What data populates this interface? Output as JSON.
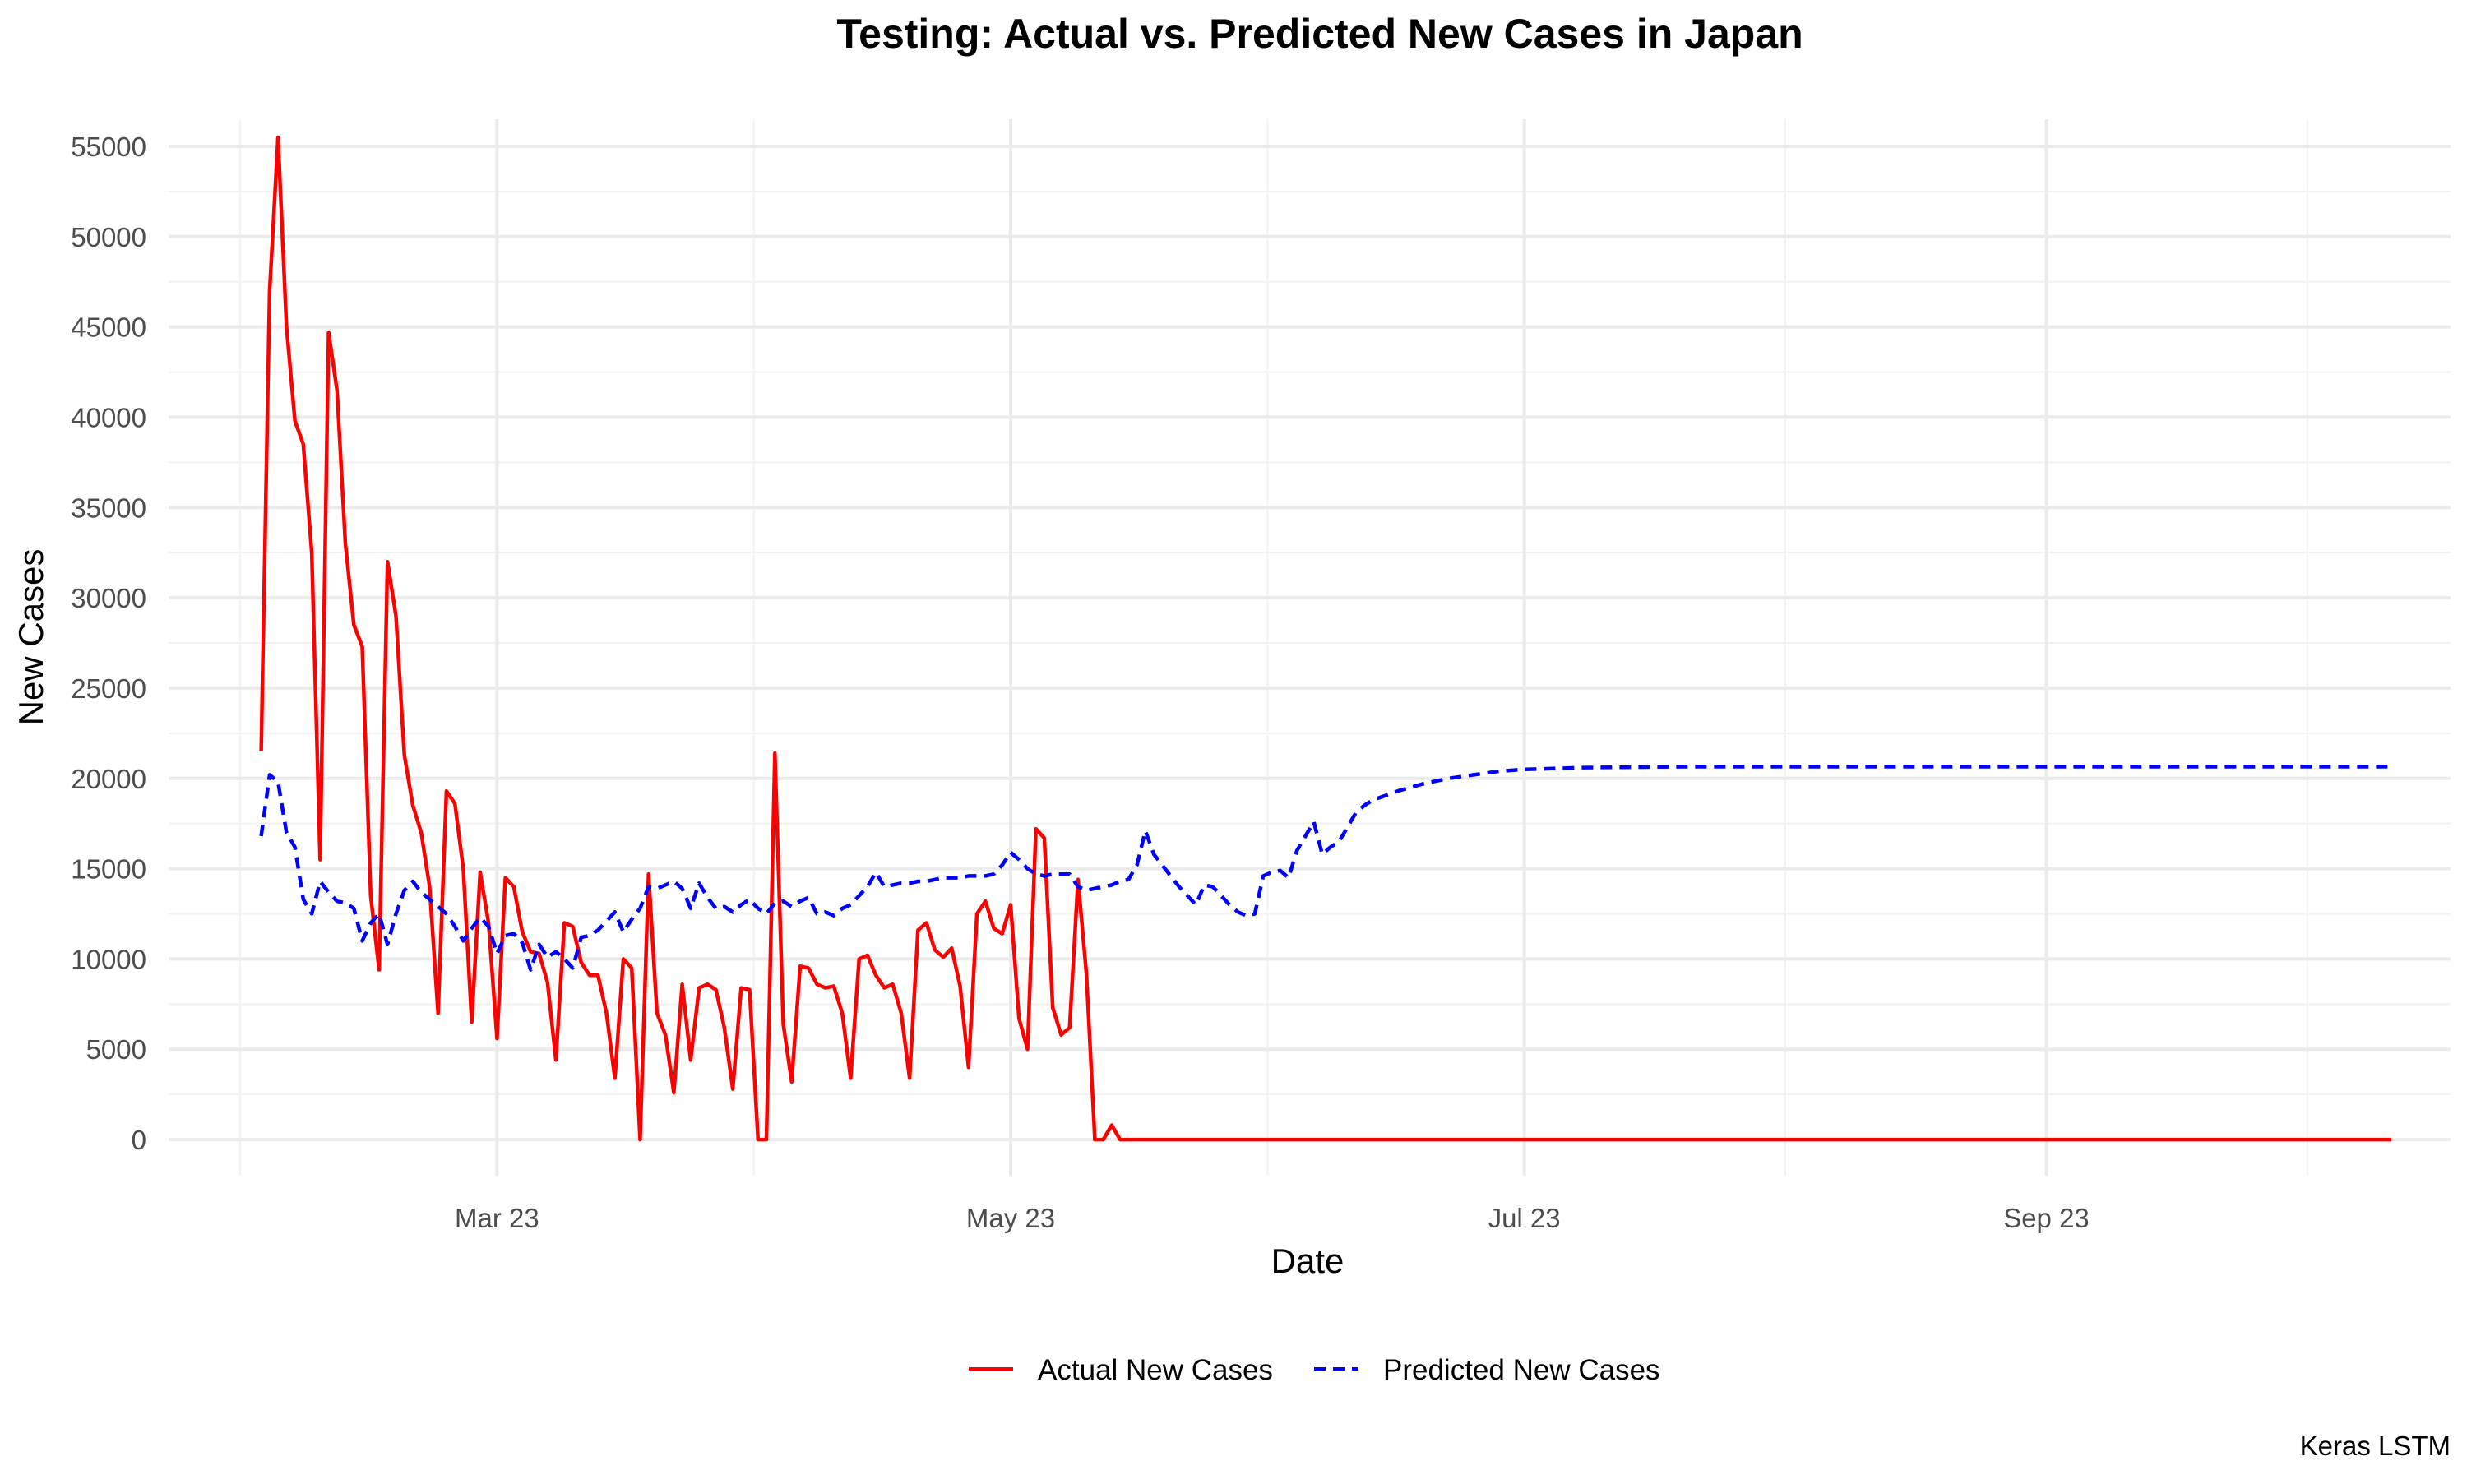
{
  "chart_data": {
    "type": "line",
    "title": "Testing: Actual vs. Predicted New Cases in Japan",
    "xlabel": "Date",
    "ylabel": "New Cases",
    "caption": "Keras LSTM",
    "xlim": [
      "2023-01-21",
      "2023-10-19"
    ],
    "ylim": [
      -2000,
      56500
    ],
    "x_ticks": [
      {
        "date": "2023-03-01",
        "label": "Mar 23"
      },
      {
        "date": "2023-05-01",
        "label": "May 23"
      },
      {
        "date": "2023-07-01",
        "label": "Jul 23"
      },
      {
        "date": "2023-09-01",
        "label": "Sep 23"
      }
    ],
    "y_ticks": [
      0,
      5000,
      10000,
      15000,
      20000,
      25000,
      30000,
      35000,
      40000,
      45000,
      50000,
      55000
    ],
    "grid": true,
    "legend_position": "bottom",
    "series": [
      {
        "name": "Actual New Cases",
        "color": "#FF0000",
        "dash": "solid",
        "x": [
          "2023-02-01",
          "2023-02-02",
          "2023-02-03",
          "2023-02-04",
          "2023-02-05",
          "2023-02-06",
          "2023-02-07",
          "2023-02-08",
          "2023-02-09",
          "2023-02-10",
          "2023-02-11",
          "2023-02-12",
          "2023-02-13",
          "2023-02-14",
          "2023-02-15",
          "2023-02-16",
          "2023-02-17",
          "2023-02-18",
          "2023-02-19",
          "2023-02-20",
          "2023-02-21",
          "2023-02-22",
          "2023-02-23",
          "2023-02-24",
          "2023-02-25",
          "2023-02-26",
          "2023-02-27",
          "2023-02-28",
          "2023-03-01",
          "2023-03-02",
          "2023-03-03",
          "2023-03-04",
          "2023-03-05",
          "2023-03-06",
          "2023-03-07",
          "2023-03-08",
          "2023-03-09",
          "2023-03-10",
          "2023-03-11",
          "2023-03-12",
          "2023-03-13",
          "2023-03-14",
          "2023-03-15",
          "2023-03-16",
          "2023-03-17",
          "2023-03-18",
          "2023-03-19",
          "2023-03-20",
          "2023-03-21",
          "2023-03-22",
          "2023-03-23",
          "2023-03-24",
          "2023-03-25",
          "2023-03-26",
          "2023-03-27",
          "2023-03-28",
          "2023-03-29",
          "2023-03-30",
          "2023-03-31",
          "2023-04-01",
          "2023-04-02",
          "2023-04-03",
          "2023-04-04",
          "2023-04-05",
          "2023-04-06",
          "2023-04-07",
          "2023-04-08",
          "2023-04-09",
          "2023-04-10",
          "2023-04-11",
          "2023-04-12",
          "2023-04-13",
          "2023-04-14",
          "2023-04-15",
          "2023-04-16",
          "2023-04-17",
          "2023-04-18",
          "2023-04-19",
          "2023-04-20",
          "2023-04-21",
          "2023-04-22",
          "2023-04-23",
          "2023-04-24",
          "2023-04-25",
          "2023-04-26",
          "2023-04-27",
          "2023-04-28",
          "2023-04-29",
          "2023-04-30",
          "2023-05-01",
          "2023-05-02",
          "2023-05-03",
          "2023-05-04",
          "2023-05-05",
          "2023-05-06",
          "2023-05-07",
          "2023-05-08",
          "2023-05-09",
          "2023-05-10",
          "2023-05-11",
          "2023-05-12",
          "2023-05-13",
          "2023-05-14",
          "2023-10-12"
        ],
        "y": [
          21500,
          47000,
          55500,
          45000,
          39800,
          38500,
          32500,
          15500,
          44700,
          41500,
          33000,
          28500,
          27300,
          13500,
          9400,
          32000,
          29000,
          21300,
          18500,
          17000,
          14000,
          7000,
          19300,
          18600,
          15000,
          6500,
          14800,
          12000,
          5600,
          14500,
          14000,
          11500,
          10400,
          10300,
          8700,
          4400,
          12000,
          11800,
          9800,
          9100,
          9100,
          7000,
          3400,
          10000,
          9500,
          0,
          14700,
          7000,
          5800,
          2600,
          8600,
          4400,
          8400,
          8600,
          8300,
          6200,
          2800,
          8400,
          8300,
          0,
          0,
          21400,
          6400,
          3200,
          9600,
          9500,
          8600,
          8400,
          8500,
          7000,
          3400,
          10000,
          10200,
          9100,
          8400,
          8600,
          7000,
          3400,
          11600,
          12000,
          10500,
          10100,
          10600,
          8500,
          4000,
          12500,
          13200,
          11700,
          11400,
          13000,
          6700,
          5000,
          17200,
          16700,
          7300,
          5800,
          6200,
          14400,
          9200,
          0,
          0,
          800,
          0,
          0
        ]
      },
      {
        "name": "Predicted New Cases",
        "color": "#0000FF",
        "dash": "dashed",
        "x": [
          "2023-02-01",
          "2023-02-02",
          "2023-02-03",
          "2023-02-04",
          "2023-02-05",
          "2023-02-06",
          "2023-02-07",
          "2023-02-08",
          "2023-02-09",
          "2023-02-10",
          "2023-02-11",
          "2023-02-12",
          "2023-02-13",
          "2023-02-14",
          "2023-02-15",
          "2023-02-16",
          "2023-02-17",
          "2023-02-18",
          "2023-02-19",
          "2023-02-20",
          "2023-02-21",
          "2023-02-22",
          "2023-02-23",
          "2023-02-24",
          "2023-02-25",
          "2023-02-26",
          "2023-02-27",
          "2023-02-28",
          "2023-03-01",
          "2023-03-02",
          "2023-03-03",
          "2023-03-04",
          "2023-03-05",
          "2023-03-06",
          "2023-03-07",
          "2023-03-08",
          "2023-03-09",
          "2023-03-10",
          "2023-03-11",
          "2023-03-12",
          "2023-03-13",
          "2023-03-14",
          "2023-03-15",
          "2023-03-16",
          "2023-03-17",
          "2023-03-18",
          "2023-03-19",
          "2023-03-20",
          "2023-03-21",
          "2023-03-22",
          "2023-03-23",
          "2023-03-24",
          "2023-03-25",
          "2023-03-26",
          "2023-03-27",
          "2023-03-28",
          "2023-03-29",
          "2023-03-30",
          "2023-03-31",
          "2023-04-01",
          "2023-04-02",
          "2023-04-03",
          "2023-04-04",
          "2023-04-05",
          "2023-04-06",
          "2023-04-07",
          "2023-04-08",
          "2023-04-09",
          "2023-04-10",
          "2023-04-11",
          "2023-04-12",
          "2023-04-13",
          "2023-04-14",
          "2023-04-15",
          "2023-04-16",
          "2023-04-17",
          "2023-04-18",
          "2023-04-19",
          "2023-04-20",
          "2023-04-21",
          "2023-04-22",
          "2023-04-23",
          "2023-04-24",
          "2023-04-25",
          "2023-04-26",
          "2023-04-27",
          "2023-04-28",
          "2023-04-29",
          "2023-04-30",
          "2023-05-01",
          "2023-05-02",
          "2023-05-03",
          "2023-05-04",
          "2023-05-05",
          "2023-05-06",
          "2023-05-07",
          "2023-05-08",
          "2023-05-09",
          "2023-05-10",
          "2023-05-11",
          "2023-05-12",
          "2023-05-13",
          "2023-05-14",
          "2023-05-15",
          "2023-05-16",
          "2023-05-17",
          "2023-05-18",
          "2023-05-19",
          "2023-05-20",
          "2023-05-21",
          "2023-05-22",
          "2023-05-23",
          "2023-05-24",
          "2023-05-25",
          "2023-05-26",
          "2023-05-27",
          "2023-05-28",
          "2023-05-29",
          "2023-05-30",
          "2023-05-31",
          "2023-06-01",
          "2023-06-02",
          "2023-06-03",
          "2023-06-04",
          "2023-06-05",
          "2023-06-06",
          "2023-06-07",
          "2023-06-08",
          "2023-06-09",
          "2023-06-10",
          "2023-06-11",
          "2023-06-12",
          "2023-06-13",
          "2023-06-16",
          "2023-06-19",
          "2023-06-22",
          "2023-06-25",
          "2023-06-28",
          "2023-07-01",
          "2023-07-08",
          "2023-07-20",
          "2023-08-10",
          "2023-09-10",
          "2023-10-12"
        ],
        "y": [
          16800,
          20200,
          19800,
          17000,
          16200,
          13300,
          12500,
          14300,
          13700,
          13200,
          13100,
          12800,
          11000,
          12000,
          12500,
          10800,
          12500,
          13800,
          14300,
          13700,
          13300,
          12900,
          12500,
          11800,
          11000,
          11700,
          12300,
          11800,
          10300,
          11300,
          11400,
          10900,
          9400,
          10800,
          10100,
          10400,
          10000,
          9500,
          11200,
          11300,
          11600,
          12100,
          12600,
          11500,
          12200,
          12800,
          14000,
          13900,
          14100,
          14300,
          13900,
          12800,
          14200,
          13400,
          12800,
          12900,
          12600,
          13000,
          13300,
          12800,
          12500,
          13100,
          13200,
          12900,
          13200,
          13400,
          12500,
          12600,
          12400,
          12800,
          13000,
          13500,
          14000,
          14800,
          14000,
          14100,
          14200,
          14200,
          14300,
          14300,
          14400,
          14500,
          14500,
          14500,
          14600,
          14600,
          14600,
          14700,
          15200,
          15900,
          15500,
          15000,
          14700,
          14600,
          14700,
          14700,
          14700,
          14000,
          13800,
          13900,
          14000,
          14100,
          14300,
          14400,
          15200,
          17100,
          15800,
          15200,
          14600,
          14000,
          13500,
          13000,
          14100,
          14000,
          13500,
          13000,
          12600,
          12400,
          12500,
          14600,
          14800,
          14900,
          14500,
          16000,
          16800,
          17600,
          15800,
          16200,
          16500,
          17300,
          18100,
          18500,
          18800,
          19300,
          19700,
          20000,
          20200,
          20400,
          20500,
          20600,
          20650,
          20650,
          20650,
          20650
        ]
      }
    ]
  }
}
